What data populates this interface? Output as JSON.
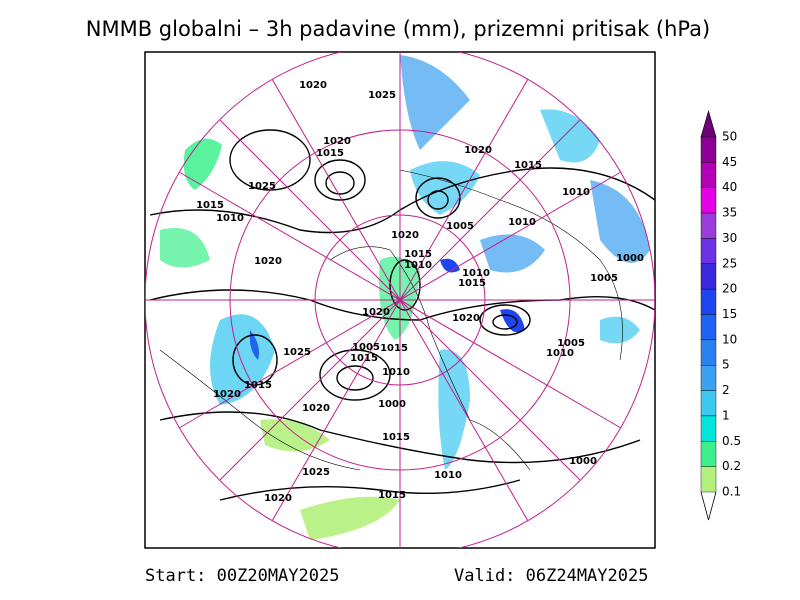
{
  "title": "NMMB globalni – 3h padavine (mm), prizemni pritisak (hPa)",
  "colorbar": {
    "labels": [
      "50",
      "45",
      "40",
      "35",
      "30",
      "25",
      "20",
      "15",
      "10",
      "5",
      "2",
      "1",
      "0.5",
      "0.2",
      "0.1"
    ],
    "colors": [
      "#6e0078",
      "#8c0096",
      "#b400b4",
      "#e600e6",
      "#9b3cdc",
      "#6e32e6",
      "#3c28dc",
      "#1e46f0",
      "#1e64f0",
      "#2882f0",
      "#3ca0f0",
      "#3cc8f0",
      "#00e6dc",
      "#3cf08c",
      "#b4f07c"
    ]
  },
  "isobar_labels": [
    "1020",
    "1025",
    "1020",
    "1015",
    "1025",
    "1015",
    "1010",
    "1020",
    "1015",
    "1020",
    "1015",
    "1010",
    "1005",
    "1020",
    "1010",
    "1010",
    "1005",
    "1000",
    "1015",
    "1010",
    "1020",
    "1015",
    "1005",
    "1015",
    "1010",
    "1020",
    "1025",
    "1015",
    "1020",
    "1000",
    "1015",
    "1010",
    "1010",
    "1005",
    "1020",
    "1025",
    "1020",
    "1015",
    "1000"
  ],
  "footer": {
    "start": "Start: 00Z20MAY2025",
    "valid": "Valid: 06Z24MAY2025"
  }
}
